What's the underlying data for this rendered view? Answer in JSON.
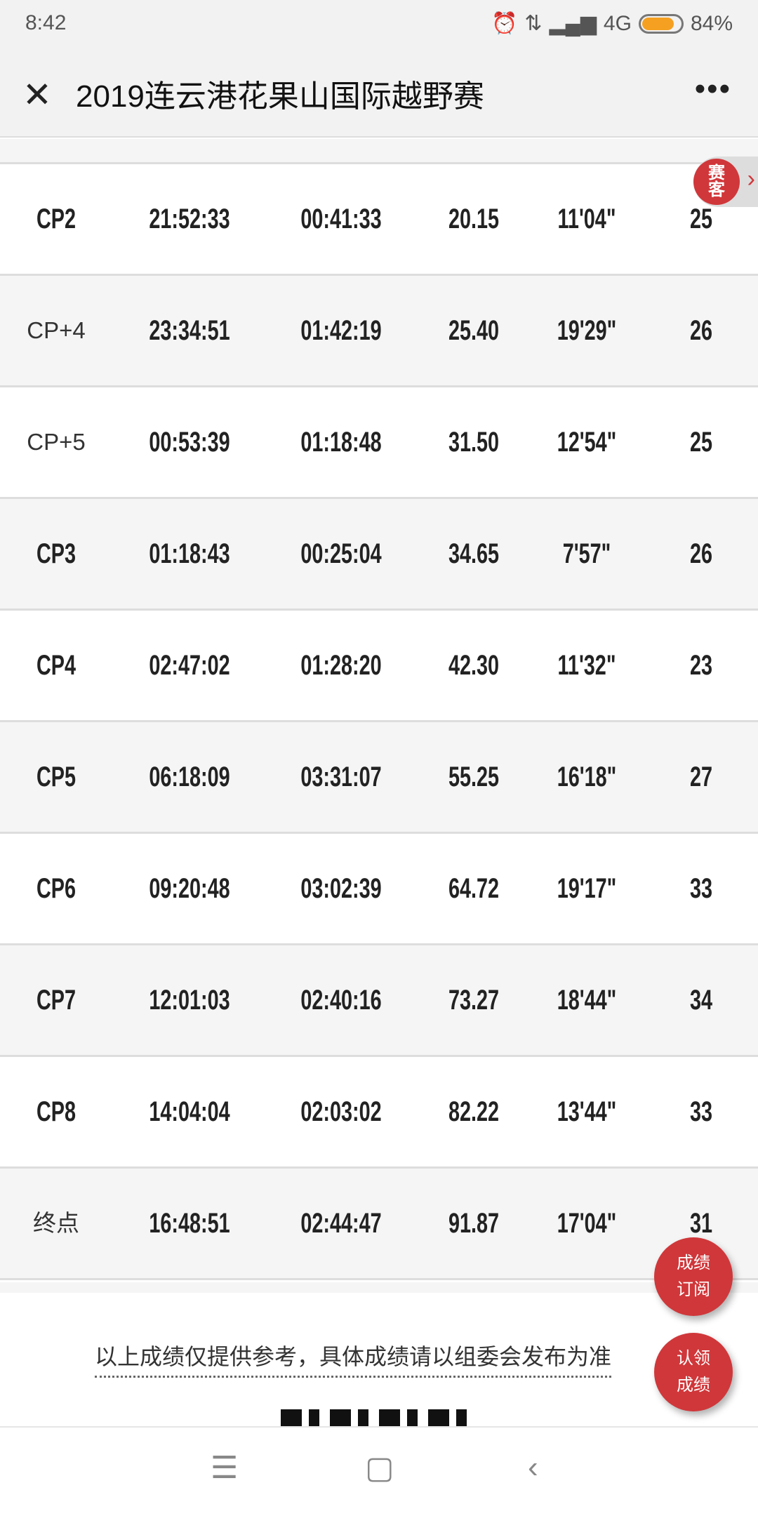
{
  "status_bar": {
    "time": "8:42",
    "network": "4G",
    "battery": "84%",
    "battery_level": 84
  },
  "header": {
    "title": "2019连云港花果山国际越野赛",
    "close_icon": "close-icon",
    "more_icon": "more-icon"
  },
  "side_tab": {
    "label": "赛客"
  },
  "rows": [
    [
      "CP2",
      "21:52:33",
      "00:41:33",
      "20.15",
      "11'04\"",
      "25"
    ],
    [
      "CP+4",
      "23:34:51",
      "01:42:19",
      "25.40",
      "19'29\"",
      "26"
    ],
    [
      "CP+5",
      "00:53:39",
      "01:18:48",
      "31.50",
      "12'54\"",
      "25"
    ],
    [
      "CP3",
      "01:18:43",
      "00:25:04",
      "34.65",
      "7'57\"",
      "26"
    ],
    [
      "CP4",
      "02:47:02",
      "01:28:20",
      "42.30",
      "11'32\"",
      "23"
    ],
    [
      "CP5",
      "06:18:09",
      "03:31:07",
      "55.25",
      "16'18\"",
      "27"
    ],
    [
      "CP6",
      "09:20:48",
      "03:02:39",
      "64.72",
      "19'17\"",
      "33"
    ],
    [
      "CP7",
      "12:01:03",
      "02:40:16",
      "73.27",
      "18'44\"",
      "34"
    ],
    [
      "CP8",
      "14:04:04",
      "02:03:02",
      "82.22",
      "13'44\"",
      "33"
    ],
    [
      "终点",
      "16:48:51",
      "02:44:47",
      "91.87",
      "17'04\"",
      "31"
    ]
  ],
  "footer": {
    "note": "以上成绩仅提供参考，具体成绩请以组委会发布为准"
  },
  "fabs": {
    "subscribe": [
      "成绩",
      "订阅"
    ],
    "claim": [
      "认领",
      "成绩"
    ]
  },
  "colors": {
    "accent": "#d0373a",
    "battery": "#f5a021"
  }
}
